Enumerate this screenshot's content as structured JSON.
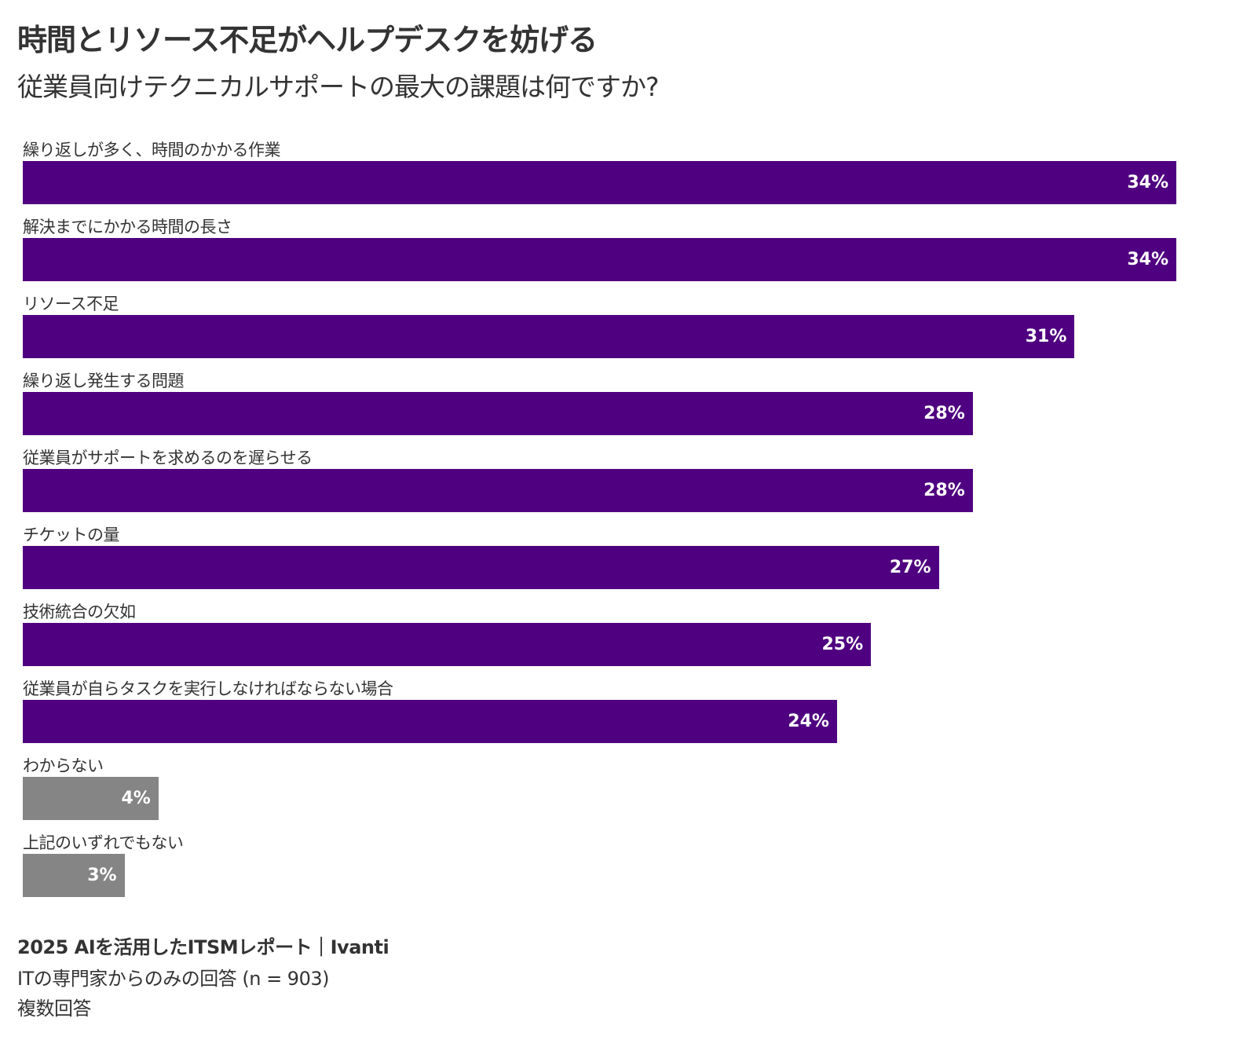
{
  "chart_data": {
    "type": "bar",
    "orientation": "horizontal",
    "title": "時間とリソース不足がヘルプデスクを妨げる",
    "subtitle": "従業員向けテクニカルサポートの最大の課題は何ですか?",
    "categories": [
      "繰り返しが多く、時間のかかる作業",
      "解決までにかかる時間の長さ",
      "リソース不足",
      "繰り返し発生する問題",
      "従業員がサポートを求めるのを遅らせる",
      "チケットの量",
      "技術統合の欠如",
      "従業員が自らタスクを実行しなければならない場合",
      "わからない",
      "上記のいずれでもない"
    ],
    "values": [
      34,
      34,
      31,
      28,
      28,
      27,
      25,
      24,
      4,
      3
    ],
    "value_labels": [
      "34%",
      "34%",
      "31%",
      "28%",
      "28%",
      "27%",
      "25%",
      "24%",
      "4%",
      "3%"
    ],
    "unit": "%",
    "bar_colors": [
      "#4f0080",
      "#4f0080",
      "#4f0080",
      "#4f0080",
      "#4f0080",
      "#4f0080",
      "#4f0080",
      "#4f0080",
      "#858585",
      "#858585"
    ],
    "xlim": [
      0,
      34
    ],
    "grid": false,
    "legend": "none"
  },
  "footer": {
    "source": "2025 AIを活用したITSMレポート｜Ivanti",
    "sample": "ITの専門家からのみの回答 (n = 903)",
    "note": "複数回答"
  }
}
